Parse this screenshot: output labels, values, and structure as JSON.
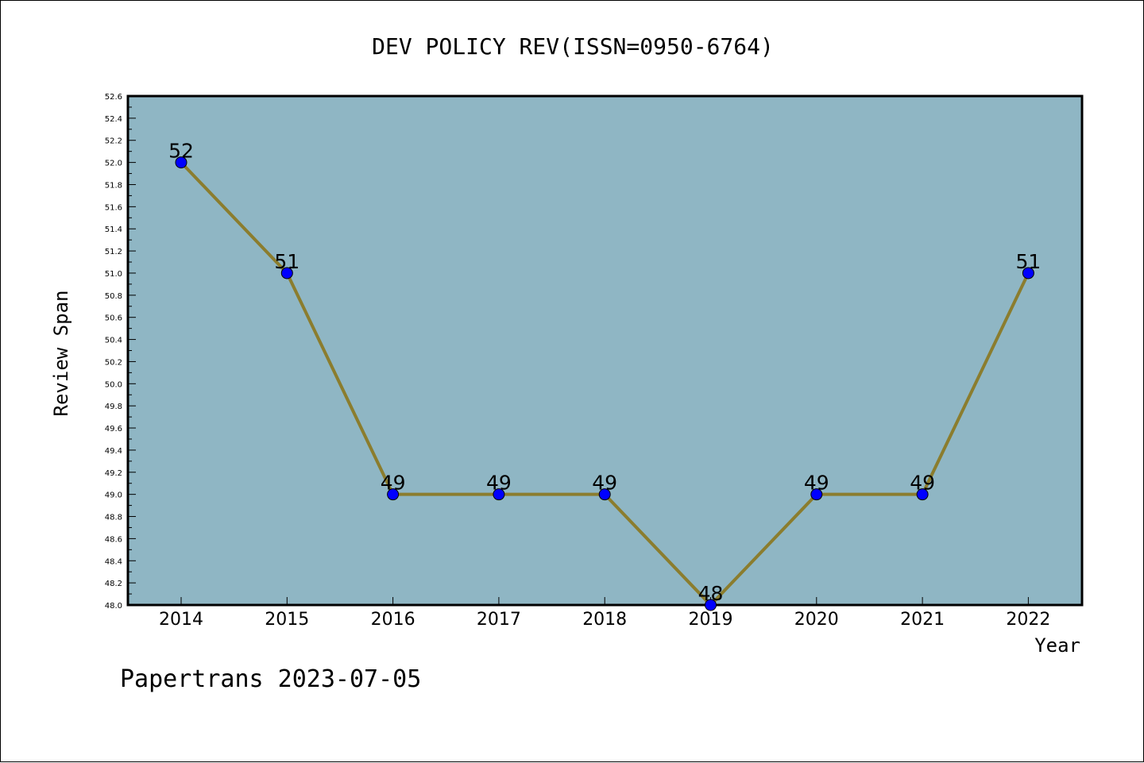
{
  "chart_data": {
    "type": "line",
    "title": "DEV POLICY REV(ISSN=0950-6764)",
    "xlabel": "Year",
    "ylabel": "Review Span",
    "categories": [
      "2014",
      "2015",
      "2016",
      "2017",
      "2018",
      "2019",
      "2020",
      "2021",
      "2022"
    ],
    "series": [
      {
        "values": [
          52,
          51,
          49,
          49,
          49,
          48,
          49,
          49,
          51
        ],
        "data_labels": [
          "52",
          "51",
          "49",
          "49",
          "49",
          "48",
          "49",
          "49",
          "51"
        ]
      }
    ],
    "ylim": [
      48.0,
      52.6
    ],
    "yticks": [
      "48.0",
      "48.2",
      "48.4",
      "48.6",
      "48.8",
      "49.0",
      "49.2",
      "49.4",
      "49.6",
      "49.8",
      "50.0",
      "50.2",
      "50.4",
      "50.6",
      "50.8",
      "51.0",
      "51.2",
      "51.4",
      "51.6",
      "51.8",
      "52.0",
      "52.2",
      "52.4",
      "52.6"
    ],
    "grid": false,
    "colors": {
      "plot_background": "#8fb6c4",
      "line": "#8b7d2e",
      "marker": "#0000ff"
    }
  },
  "footer": "Papertrans 2023-07-05"
}
